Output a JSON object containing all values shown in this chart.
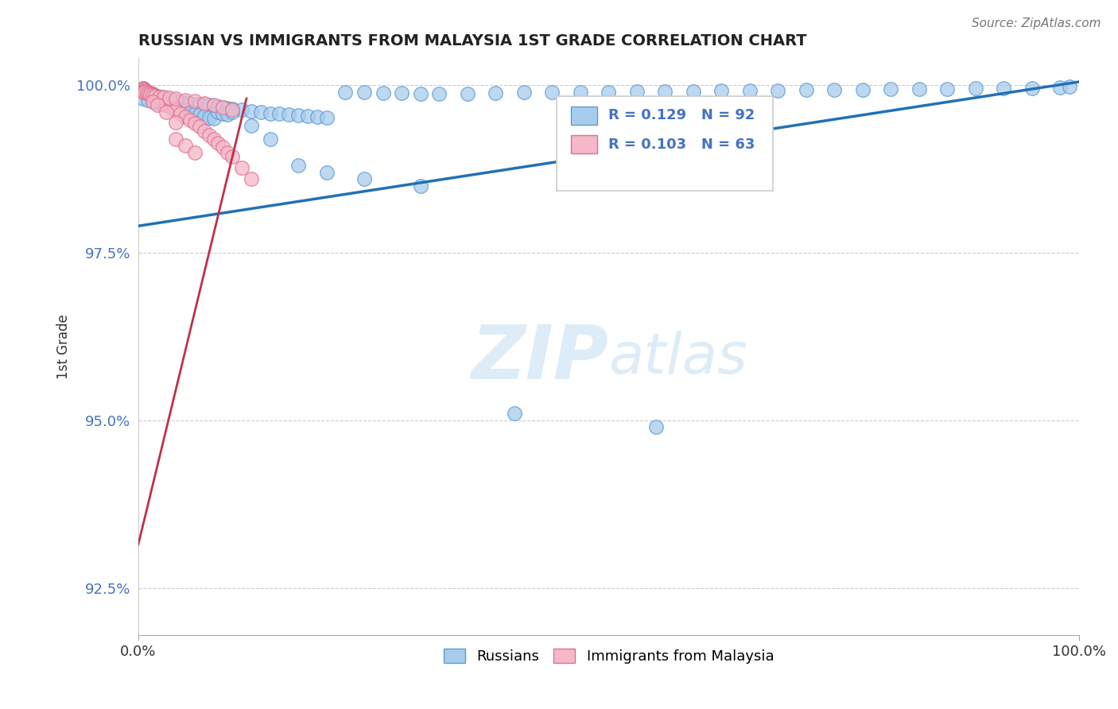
{
  "title": "RUSSIAN VS IMMIGRANTS FROM MALAYSIA 1ST GRADE CORRELATION CHART",
  "source_text": "Source: ZipAtlas.com",
  "ylabel": "1st Grade",
  "xlim": [
    0.0,
    1.0
  ],
  "ylim": [
    0.918,
    1.004
  ],
  "yticks": [
    0.925,
    0.95,
    0.975,
    1.0
  ],
  "ytick_labels": [
    "92.5%",
    "95.0%",
    "97.5%",
    "100.0%"
  ],
  "xticks": [
    0.0,
    1.0
  ],
  "xtick_labels": [
    "0.0%",
    "100.0%"
  ],
  "blue_color": "#a8ccec",
  "blue_edge_color": "#5b9bd5",
  "pink_color": "#f4b8c8",
  "pink_edge_color": "#e07090",
  "line_blue": "#2171b5",
  "line_pink": "#c0304a",
  "legend_R_blue": "R = 0.129",
  "legend_N_blue": "N = 92",
  "legend_R_pink": "R = 0.103",
  "legend_N_pink": "N = 63",
  "title_color": "#222222",
  "ytick_color": "#4472c4",
  "watermark_color": "#d0e4f5",
  "blue_line_x0": 0.0,
  "blue_line_x1": 1.0,
  "blue_line_y0": 0.979,
  "blue_line_y1": 1.0005,
  "pink_line_x0": 0.0,
  "pink_line_x1": 0.115,
  "pink_line_y0": 0.9315,
  "pink_line_y1": 0.998,
  "blue_scatter_x": [
    0.005,
    0.008,
    0.01,
    0.012,
    0.015,
    0.018,
    0.02,
    0.025,
    0.028,
    0.03,
    0.035,
    0.04,
    0.045,
    0.05,
    0.055,
    0.06,
    0.065,
    0.07,
    0.075,
    0.08,
    0.085,
    0.09,
    0.095,
    0.1,
    0.11,
    0.12,
    0.13,
    0.14,
    0.15,
    0.16,
    0.17,
    0.18,
    0.19,
    0.2,
    0.22,
    0.24,
    0.26,
    0.28,
    0.3,
    0.32,
    0.35,
    0.38,
    0.41,
    0.44,
    0.47,
    0.5,
    0.53,
    0.56,
    0.59,
    0.62,
    0.65,
    0.68,
    0.71,
    0.74,
    0.77,
    0.8,
    0.83,
    0.86,
    0.89,
    0.92,
    0.95,
    0.98,
    0.99,
    0.005,
    0.01,
    0.015,
    0.02,
    0.025,
    0.03,
    0.035,
    0.04,
    0.045,
    0.05,
    0.055,
    0.06,
    0.065,
    0.07,
    0.075,
    0.08,
    0.085,
    0.09,
    0.095,
    0.1,
    0.12,
    0.14,
    0.17,
    0.2,
    0.24,
    0.3,
    0.4,
    0.55
  ],
  "blue_scatter_y": [
    0.9995,
    0.9992,
    0.999,
    0.9988,
    0.9987,
    0.9985,
    0.9984,
    0.9982,
    0.998,
    0.9979,
    0.9978,
    0.9976,
    0.9975,
    0.9974,
    0.9973,
    0.9972,
    0.9972,
    0.9971,
    0.997,
    0.9969,
    0.9968,
    0.9967,
    0.9966,
    0.9965,
    0.9963,
    0.9961,
    0.996,
    0.9958,
    0.9957,
    0.9956,
    0.9955,
    0.9954,
    0.9953,
    0.9952,
    0.999,
    0.9989,
    0.9988,
    0.9988,
    0.9987,
    0.9987,
    0.9987,
    0.9988,
    0.9989,
    0.999,
    0.999,
    0.999,
    0.9991,
    0.9991,
    0.9991,
    0.9992,
    0.9992,
    0.9992,
    0.9993,
    0.9993,
    0.9993,
    0.9994,
    0.9994,
    0.9994,
    0.9995,
    0.9995,
    0.9996,
    0.9997,
    0.9998,
    0.998,
    0.9978,
    0.9976,
    0.9974,
    0.9972,
    0.997,
    0.9968,
    0.9966,
    0.9964,
    0.9962,
    0.996,
    0.9958,
    0.9956,
    0.9954,
    0.9952,
    0.995,
    0.996,
    0.9958,
    0.9956,
    0.996,
    0.994,
    0.992,
    0.988,
    0.987,
    0.986,
    0.985,
    0.951,
    0.949
  ],
  "pink_scatter_x": [
    0.005,
    0.006,
    0.007,
    0.008,
    0.009,
    0.01,
    0.011,
    0.012,
    0.013,
    0.014,
    0.015,
    0.016,
    0.017,
    0.018,
    0.019,
    0.02,
    0.021,
    0.022,
    0.023,
    0.025,
    0.027,
    0.03,
    0.033,
    0.037,
    0.04,
    0.045,
    0.05,
    0.055,
    0.06,
    0.065,
    0.07,
    0.075,
    0.08,
    0.085,
    0.09,
    0.095,
    0.1,
    0.11,
    0.12,
    0.005,
    0.007,
    0.009,
    0.011,
    0.013,
    0.015,
    0.018,
    0.022,
    0.027,
    0.033,
    0.04,
    0.05,
    0.06,
    0.07,
    0.08,
    0.09,
    0.1,
    0.04,
    0.05,
    0.06,
    0.015,
    0.02,
    0.03,
    0.04
  ],
  "pink_scatter_y": [
    0.9995,
    0.9994,
    0.9993,
    0.9992,
    0.9991,
    0.999,
    0.9989,
    0.9988,
    0.9988,
    0.9987,
    0.9986,
    0.9985,
    0.9984,
    0.9983,
    0.9982,
    0.9981,
    0.998,
    0.9979,
    0.9978,
    0.9976,
    0.9974,
    0.9971,
    0.9968,
    0.9965,
    0.9962,
    0.9958,
    0.9953,
    0.9948,
    0.9943,
    0.9938,
    0.9932,
    0.9926,
    0.992,
    0.9914,
    0.9908,
    0.99,
    0.9893,
    0.9877,
    0.986,
    0.999,
    0.9989,
    0.9988,
    0.9987,
    0.9986,
    0.9985,
    0.9984,
    0.9983,
    0.9982,
    0.9981,
    0.998,
    0.9978,
    0.9976,
    0.9973,
    0.997,
    0.9967,
    0.9963,
    0.992,
    0.991,
    0.99,
    0.9975,
    0.997,
    0.996,
    0.9945
  ]
}
